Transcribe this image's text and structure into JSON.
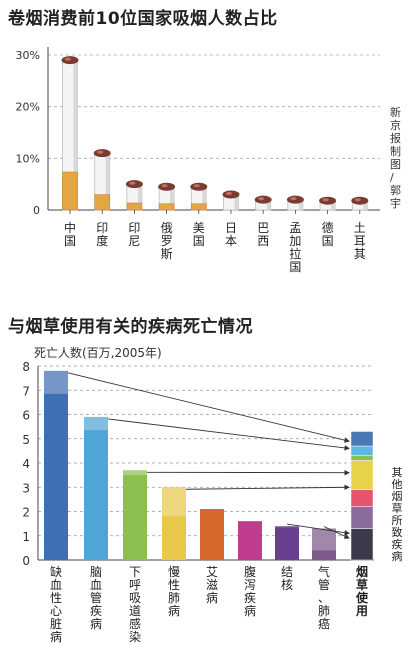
{
  "header": {
    "title1": "卷烟消费前10位国家吸烟人数占比",
    "credit": "新京报制图/郭宇",
    "title2": "与烟草使用有关的疾病死亡情况",
    "unit2": "死亡人数(百万,2005年)",
    "side_label": "其他烟草所致疾病"
  },
  "chart_data": [
    {
      "type": "bar",
      "title": "卷烟消费前10位国家吸烟人数占比",
      "categories": [
        "中国",
        "印度",
        "印尼",
        "俄罗斯",
        "美国",
        "日本",
        "巴西",
        "孟加拉国",
        "德国",
        "土耳其"
      ],
      "values": [
        29,
        11,
        5,
        4.5,
        4.5,
        3,
        2,
        2,
        1.8,
        1.8
      ],
      "ylim": [
        0,
        30
      ],
      "yticks": [
        "0",
        "10%",
        "20%",
        "30%"
      ],
      "ytick_values": [
        0,
        10,
        20,
        30
      ],
      "grid": true,
      "bar_style": "cigarette"
    },
    {
      "type": "bar",
      "title": "与烟草使用有关的疾病死亡情况",
      "ylabel": "死亡人数(百万,2005年)",
      "categories": [
        "缺血性心脏病",
        "脑血管疾病",
        "下呼吸道感染",
        "慢性肺病",
        "艾滋病",
        "腹泻疾病",
        "结核",
        "气管、肺癌",
        "烟草使用"
      ],
      "values": [
        7.8,
        5.9,
        3.7,
        3.0,
        2.1,
        1.6,
        1.4,
        1.3,
        5.3
      ],
      "tobacco_share": [
        0.95,
        0.55,
        0.2,
        1.2,
        0,
        0,
        0.05,
        0.9,
        5.3
      ],
      "colors": [
        "#3f6fb3",
        "#4fa6d6",
        "#8cbf4f",
        "#e8c74a",
        "#d4682c",
        "#c03c8e",
        "#6b3f8f",
        "#7d5a8a",
        "#4a78b5"
      ],
      "stack_segments": [
        {
          "value": 1.3,
          "color": "#3a3a4a"
        },
        {
          "value": 0.9,
          "color": "#8a6d9e"
        },
        {
          "value": 0.7,
          "color": "#e3546f"
        },
        {
          "value": 1.2,
          "color": "#e8d24a"
        },
        {
          "value": 0.2,
          "color": "#8cbf4f"
        },
        {
          "value": 0.4,
          "color": "#5fb6e3"
        },
        {
          "value": 0.6,
          "color": "#4a78b5"
        }
      ],
      "ylim": [
        0,
        8
      ],
      "yticks": [
        "0",
        "1",
        "2",
        "3",
        "4",
        "5",
        "6",
        "7",
        "8"
      ],
      "grid": true
    }
  ]
}
